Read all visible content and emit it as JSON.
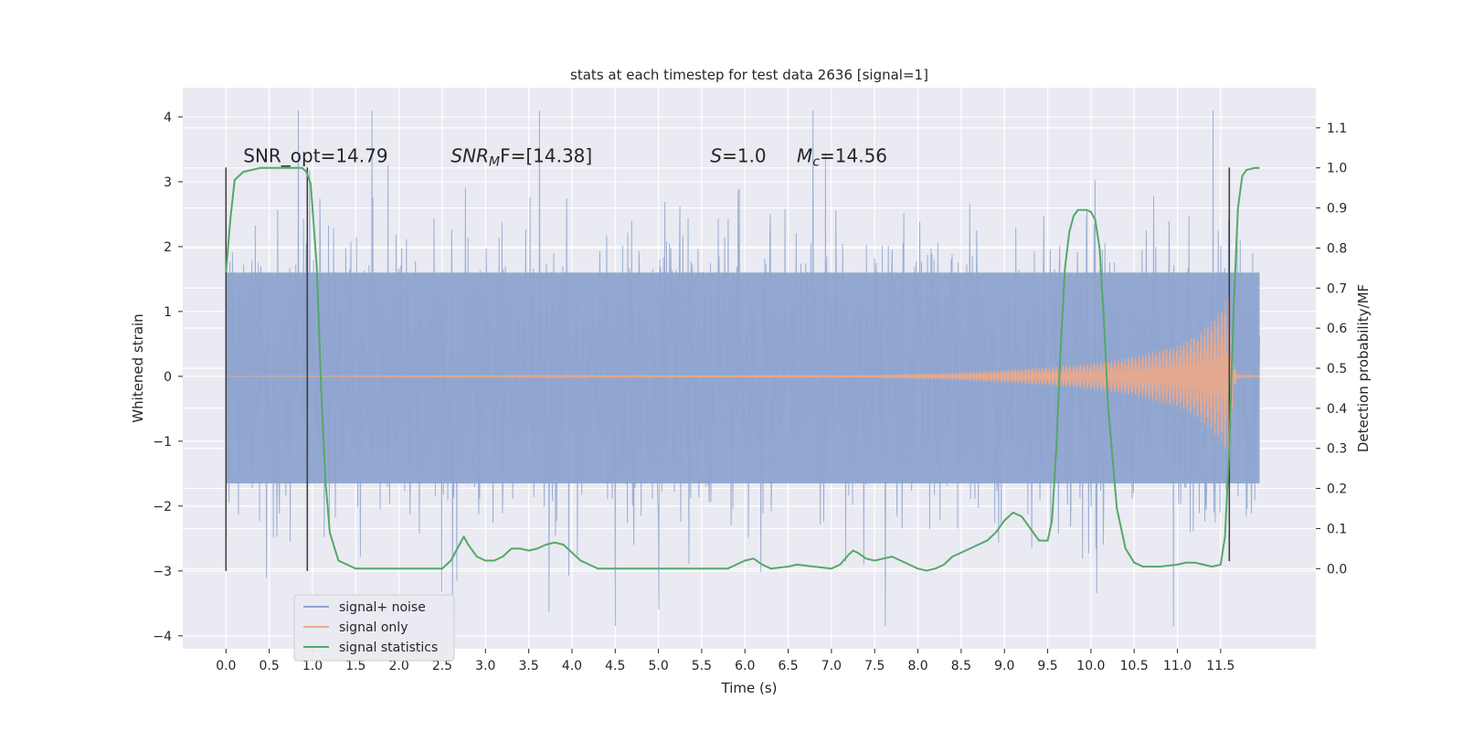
{
  "chart_data": {
    "type": "line",
    "title": "stats at each timestep for test data 2636 [signal=1]",
    "xlabel": "Time (s)",
    "ylabel": "Whitened strain",
    "ylabel_right": "Detection probability/MF",
    "xlim": [
      -0.5,
      12.6
    ],
    "ylim": [
      -4.2,
      4.45
    ],
    "ylim_right": [
      -0.2,
      1.2
    ],
    "x_ticks": [
      0.0,
      0.5,
      1.0,
      1.5,
      2.0,
      2.5,
      3.0,
      3.5,
      4.0,
      4.5,
      5.0,
      5.5,
      6.0,
      6.5,
      7.0,
      7.5,
      8.0,
      8.5,
      9.0,
      9.5,
      10.0,
      10.5,
      11.0,
      11.5
    ],
    "x_tick_labels": [
      "0.0",
      "0.5",
      "1.0",
      "1.5",
      "2.0",
      "2.5",
      "3.0",
      "3.5",
      "4.0",
      "4.5",
      "5.0",
      "5.5",
      "6.0",
      "6.5",
      "7.0",
      "7.5",
      "8.0",
      "8.5",
      "9.0",
      "9.5",
      "10.0",
      "10.5",
      "11.0",
      "11.5"
    ],
    "y_ticks": [
      -4,
      -3,
      -2,
      -1,
      0,
      1,
      2,
      3,
      4
    ],
    "y_tick_labels": [
      "−4",
      "−3",
      "−2",
      "−1",
      "0",
      "1",
      "2",
      "3",
      "4"
    ],
    "y_right_ticks": [
      0.0,
      0.1,
      0.2,
      0.3,
      0.4,
      0.5,
      0.6,
      0.7,
      0.8,
      0.9,
      1.0,
      1.1
    ],
    "y_right_tick_labels": [
      "0.0",
      "0.1",
      "0.2",
      "0.3",
      "0.4",
      "0.5",
      "0.6",
      "0.7",
      "0.8",
      "0.9",
      "1.0",
      "1.1"
    ],
    "grid": true,
    "legend_position": "lower-left",
    "annotations": [
      {
        "text": "SNR_opt=14.79",
        "x": 0.2,
        "y": 3.3
      },
      {
        "text_main": "SNR",
        "text_sub": "M",
        "text_tail": "F=[14.38]",
        "x": 2.6,
        "y": 3.3
      },
      {
        "text_main": "S",
        "text_tail": "=1.0",
        "x": 5.6,
        "y": 3.3
      },
      {
        "text_main": "M",
        "text_sub": "c",
        "text_tail": "=14.56",
        "x": 6.6,
        "y": 3.3
      }
    ],
    "vertical_lines": [
      {
        "x": 0.0,
        "y_range": [
          -3.0,
          3.22
        ]
      },
      {
        "x": 0.94,
        "y_range": [
          -3.0,
          3.22
        ]
      },
      {
        "x": 11.6,
        "y_range": [
          -2.85,
          3.22
        ]
      }
    ],
    "series": [
      {
        "name": "signal+ noise",
        "color": "#8ea4cf",
        "kind": "noise",
        "x_range": [
          0.0,
          11.95
        ],
        "band": [
          -1.65,
          1.6
        ],
        "extremes": [
          -3.85,
          4.1
        ]
      },
      {
        "name": "signal only",
        "color": "#e8a98c",
        "kind": "chirp",
        "x_range": [
          0.0,
          11.95
        ],
        "envelope": {
          "x": [
            0.0,
            7.5,
            8.5,
            9.5,
            10.0,
            10.5,
            11.0,
            11.2,
            11.4,
            11.5,
            11.6,
            11.65,
            11.7,
            11.95
          ],
          "amplitude": [
            0.0,
            0.02,
            0.06,
            0.14,
            0.2,
            0.3,
            0.48,
            0.62,
            0.85,
            1.0,
            1.3,
            0.2,
            0.03,
            0.01
          ]
        }
      },
      {
        "name": "signal statistics",
        "color": "#55a868",
        "kind": "line",
        "axis": "right",
        "x": [
          0.0,
          0.05,
          0.1,
          0.2,
          0.4,
          0.6,
          0.8,
          0.88,
          0.93,
          0.98,
          1.05,
          1.1,
          1.15,
          1.2,
          1.3,
          1.5,
          2.0,
          2.5,
          2.6,
          2.7,
          2.75,
          2.8,
          2.9,
          3.0,
          3.1,
          3.2,
          3.3,
          3.4,
          3.5,
          3.6,
          3.7,
          3.8,
          3.9,
          4.0,
          4.1,
          4.2,
          4.3,
          4.5,
          5.0,
          5.5,
          5.8,
          5.9,
          6.0,
          6.1,
          6.2,
          6.3,
          6.5,
          6.6,
          6.8,
          7.0,
          7.1,
          7.2,
          7.25,
          7.3,
          7.4,
          7.5,
          7.6,
          7.7,
          7.8,
          7.9,
          8.0,
          8.1,
          8.2,
          8.3,
          8.4,
          8.5,
          8.6,
          8.7,
          8.8,
          8.9,
          9.0,
          9.1,
          9.2,
          9.3,
          9.4,
          9.5,
          9.55,
          9.6,
          9.65,
          9.7,
          9.75,
          9.8,
          9.85,
          9.9,
          9.95,
          10.0,
          10.05,
          10.1,
          10.15,
          10.2,
          10.3,
          10.4,
          10.5,
          10.6,
          10.8,
          11.0,
          11.1,
          11.2,
          11.3,
          11.4,
          11.5,
          11.55,
          11.6,
          11.65,
          11.7,
          11.75,
          11.8,
          11.9,
          11.95
        ],
        "y": [
          0.74,
          0.87,
          0.97,
          0.99,
          1.0,
          1.0,
          1.0,
          1.0,
          0.99,
          0.96,
          0.75,
          0.45,
          0.22,
          0.09,
          0.02,
          0.0,
          0.0,
          0.0,
          0.02,
          0.06,
          0.08,
          0.06,
          0.03,
          0.02,
          0.02,
          0.03,
          0.05,
          0.05,
          0.045,
          0.05,
          0.06,
          0.065,
          0.06,
          0.04,
          0.02,
          0.01,
          0.0,
          0.0,
          0.0,
          0.0,
          0.0,
          0.01,
          0.02,
          0.025,
          0.01,
          0.0,
          0.005,
          0.01,
          0.005,
          0.0,
          0.01,
          0.035,
          0.045,
          0.04,
          0.025,
          0.02,
          0.025,
          0.03,
          0.02,
          0.01,
          0.0,
          -0.005,
          0.0,
          0.01,
          0.03,
          0.04,
          0.05,
          0.06,
          0.07,
          0.09,
          0.12,
          0.14,
          0.13,
          0.1,
          0.07,
          0.07,
          0.12,
          0.3,
          0.55,
          0.75,
          0.84,
          0.88,
          0.895,
          0.895,
          0.895,
          0.89,
          0.87,
          0.8,
          0.62,
          0.4,
          0.15,
          0.05,
          0.015,
          0.005,
          0.005,
          0.01,
          0.015,
          0.015,
          0.01,
          0.005,
          0.01,
          0.08,
          0.3,
          0.65,
          0.9,
          0.98,
          0.995,
          1.0,
          1.0
        ]
      }
    ]
  }
}
